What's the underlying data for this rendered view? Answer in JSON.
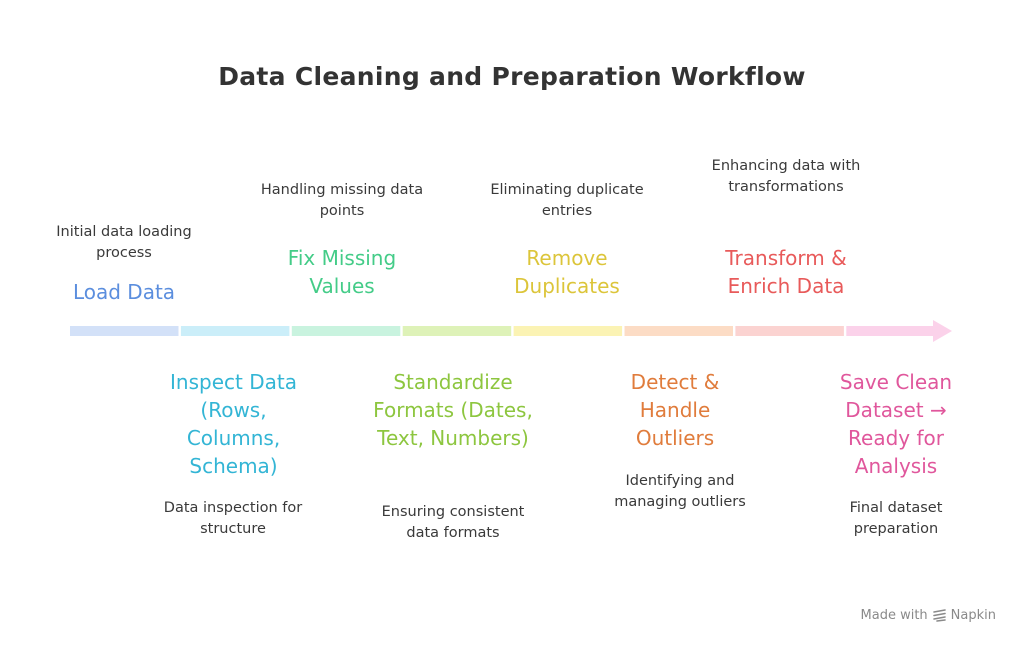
{
  "title": "Data Cleaning and Preparation Workflow",
  "colors": {
    "title": "#333333",
    "description": "#3a3a3a",
    "steps": [
      "#5b8ede",
      "#33b5d5",
      "#44cc88",
      "#8dc63f",
      "#dcc53a",
      "#e07c3c",
      "#e85a5a",
      "#e0579c"
    ],
    "bar": [
      "#d3e1f8",
      "#cbeef9",
      "#c9f3df",
      "#def2b8",
      "#fbf3b4",
      "#fcdcc5",
      "#fbd3d1",
      "#fbd2ea"
    ]
  },
  "steps": [
    {
      "label": "Load Data",
      "description": "Initial data loading process",
      "position": "top"
    },
    {
      "label": "Inspect Data (Rows, Columns, Schema)",
      "description": "Data inspection for structure",
      "position": "bottom"
    },
    {
      "label": "Fix Missing Values",
      "description": "Handling missing data points",
      "position": "top"
    },
    {
      "label": "Standardize Formats (Dates, Text, Numbers)",
      "description": "Ensuring consistent data formats",
      "position": "bottom"
    },
    {
      "label": "Remove Duplicates",
      "description": "Eliminating duplicate entries",
      "position": "top"
    },
    {
      "label": "Detect & Handle Outliers",
      "description": "Identifying and managing outliers",
      "position": "bottom"
    },
    {
      "label": "Transform & Enrich Data",
      "description": "Enhancing data with transformations",
      "position": "top"
    },
    {
      "label": "Save Clean Dataset → Ready for Analysis",
      "description": "Final dataset preparation",
      "position": "bottom"
    }
  ],
  "footer": {
    "made_with": "Made with",
    "brand": "Napkin"
  }
}
